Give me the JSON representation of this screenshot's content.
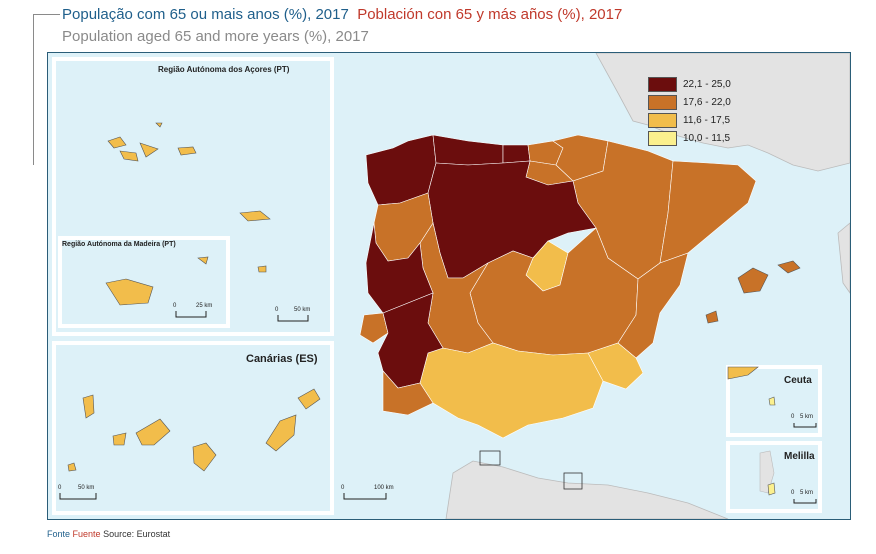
{
  "title": {
    "pt": "População com 65 ou mais anos (%), 2017",
    "es": "Población con 65 y más años (%), 2017",
    "en": "Population aged 65 and more years (%), 2017"
  },
  "insets": {
    "azores": {
      "label": "Região Autónoma dos Açores (PT)",
      "scale": "50 km",
      "scale_zero": "0"
    },
    "madeira": {
      "label": "Região Autónoma da Madeira (PT)",
      "scale": "25 km",
      "scale_zero": "0"
    },
    "canarias": {
      "label": "Canárias (ES)",
      "scale": "50 km",
      "scale_zero": "0"
    },
    "ceuta": {
      "label": "Ceuta",
      "scale": "5 km",
      "scale_zero": "0"
    },
    "melilla": {
      "label": "Melilla",
      "scale": "5 km",
      "scale_zero": "0"
    }
  },
  "main_scale": {
    "zero": "0",
    "label": "100 km"
  },
  "legend": [
    {
      "label": "22,1 - 25,0",
      "color": "#6b0d0d"
    },
    {
      "label": "17,6 - 22,0",
      "color": "#c87228"
    },
    {
      "label": "11,6 - 17,5",
      "color": "#f2bd4b"
    },
    {
      "label": "10,0 - 11,5",
      "color": "#fbf08e"
    }
  ],
  "colors": {
    "sea": "#ddf1f8",
    "land_other": "#e3e3e3",
    "frame": "#2a5d78"
  },
  "source": {
    "pt": "Fonte",
    "es": "Fuente",
    "en": "Source: Eurostat"
  }
}
